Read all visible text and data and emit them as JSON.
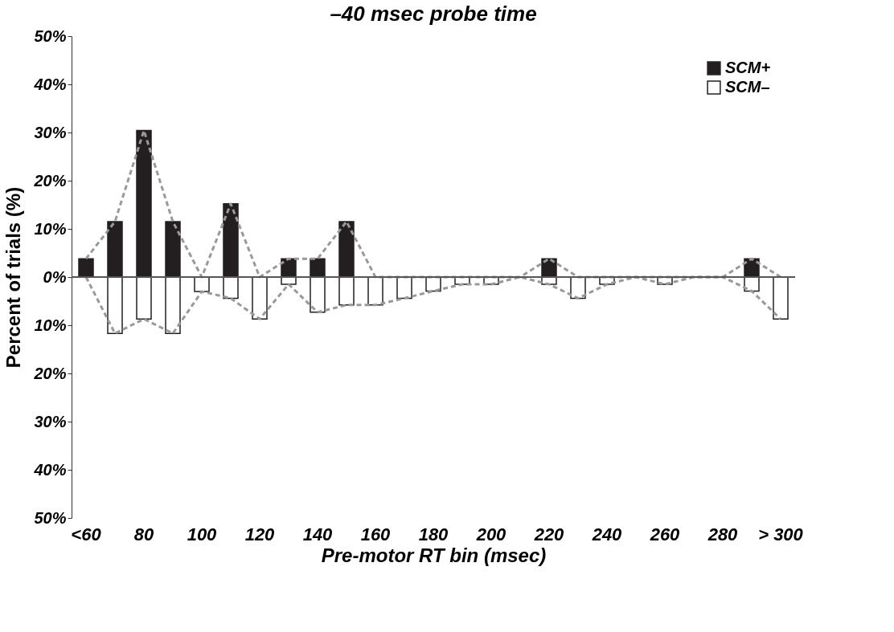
{
  "chart_data": {
    "type": "bar",
    "title": "–40 msec probe time",
    "xlabel": "Pre-motor RT bin (msec)",
    "ylabel": "Percent of trials (%)",
    "categories": [
      "<60",
      null,
      "80",
      null,
      "100",
      null,
      "120",
      null,
      "140",
      null,
      "160",
      null,
      "180",
      null,
      "200",
      null,
      "220",
      null,
      "240",
      null,
      "260",
      null,
      "280",
      null,
      "> 300"
    ],
    "series": [
      {
        "name": "SCM+",
        "color": "#231f20",
        "values": [
          3.8,
          11.5,
          30.4,
          11.5,
          0,
          15.2,
          0,
          3.8,
          3.8,
          11.5,
          0,
          0,
          0,
          0,
          0,
          0,
          3.8,
          0,
          0,
          0,
          0,
          0,
          0,
          3.8,
          0
        ]
      },
      {
        "name": "SCM–",
        "color": "#ffffff",
        "values": [
          0,
          -11.7,
          -8.7,
          -11.7,
          -3.0,
          -4.4,
          -8.7,
          -1.5,
          -7.3,
          -5.8,
          -5.8,
          -4.4,
          -2.9,
          -1.5,
          -1.5,
          0,
          -1.5,
          -4.4,
          -1.5,
          0,
          -1.5,
          0,
          0,
          -2.9,
          -8.7
        ]
      },
      {
        "type": "line",
        "color": "#999999",
        "line_style": "dashed",
        "values": [
          3.8,
          11.5,
          30.4,
          11.5,
          0,
          15.2,
          0,
          3.8,
          3.8,
          11.5,
          0,
          0,
          0,
          0,
          0,
          0,
          3.8,
          0,
          0,
          0,
          0,
          0,
          0,
          3.8,
          0
        ]
      },
      {
        "type": "line",
        "color": "#999999",
        "line_style": "dashed",
        "values": [
          0,
          -11.7,
          -8.7,
          -11.7,
          -3.0,
          -4.4,
          -8.7,
          -1.5,
          -7.3,
          -5.8,
          -5.8,
          -4.4,
          -2.9,
          -1.5,
          -1.5,
          0,
          -1.5,
          -4.4,
          -1.5,
          0,
          -1.5,
          0,
          0,
          -2.9,
          -8.7
        ]
      }
    ],
    "ylim": [
      -50,
      50
    ],
    "yticks": [
      {
        "value": -50,
        "label": "50%"
      },
      {
        "value": -40,
        "label": "40%"
      },
      {
        "value": -30,
        "label": "30%"
      },
      {
        "value": -20,
        "label": "20%"
      },
      {
        "value": -10,
        "label": "10%"
      },
      {
        "value": 0,
        "label": "0%"
      },
      {
        "value": 10,
        "label": "10%"
      },
      {
        "value": 20,
        "label": "20%"
      },
      {
        "value": 30,
        "label": "30%"
      },
      {
        "value": 40,
        "label": "40%"
      },
      {
        "value": 50,
        "label": "50%"
      }
    ],
    "ref_lines": [
      {
        "axis": "y",
        "value": 0,
        "color": "#555555"
      }
    ],
    "grid": false,
    "legend": "top right"
  }
}
